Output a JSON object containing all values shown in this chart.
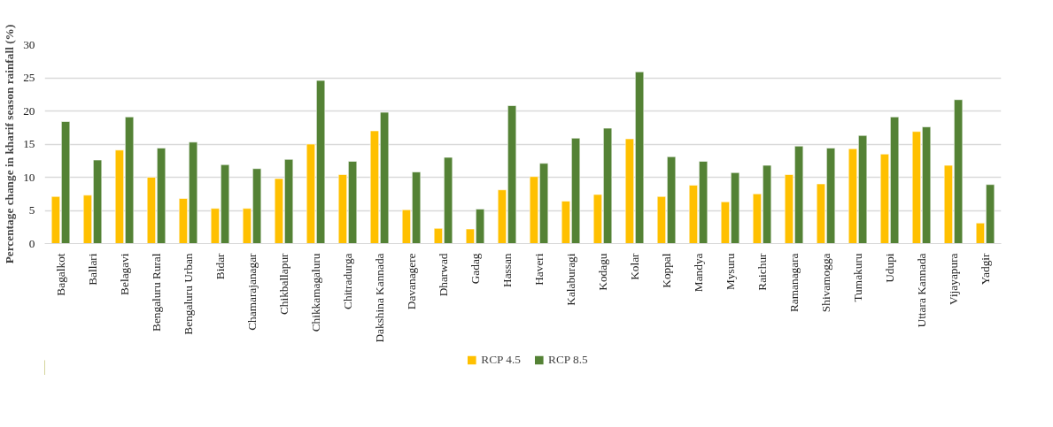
{
  "chart_data": {
    "type": "bar",
    "ylabel": "Percentage change in kharif season rainfall (%)",
    "categories": [
      "Bagalkot",
      "Ballari",
      "Belagavi",
      "Bengaluru Rural",
      "Bengaluru Urban",
      "Bidar",
      "Chamarajanagar",
      "Chikballapur",
      "Chikkamagaluru",
      "Chitradurga",
      "Dakshina Kannada",
      "Davanagere",
      "Dharwad",
      "Gadag",
      "Hassan",
      "Haveri",
      "Kalaburagi",
      "Kodagu",
      "Kolar",
      "Koppal",
      "Mandya",
      "Mysuru",
      "Raichur",
      "Ramanagara",
      "Shivamogga",
      "Tumakuru",
      "Udupi",
      "Uttara Kannada",
      "Vijayapura",
      "Yadgir"
    ],
    "series": [
      {
        "name": "RCP 4.5",
        "color": "#ffc000",
        "values": [
          7.1,
          7.3,
          14.1,
          10.0,
          6.8,
          5.3,
          5.3,
          9.8,
          15.0,
          10.4,
          17.0,
          5.1,
          2.3,
          2.2,
          8.1,
          10.1,
          6.4,
          7.4,
          15.8,
          7.1,
          8.8,
          6.3,
          7.5,
          10.4,
          9.0,
          14.3,
          13.5,
          16.9,
          11.8,
          3.1
        ]
      },
      {
        "name": "RCP 8.5",
        "color": "#548235",
        "values": [
          18.4,
          12.6,
          19.1,
          14.4,
          15.3,
          11.9,
          11.3,
          12.7,
          24.6,
          12.4,
          19.8,
          10.8,
          13.0,
          5.2,
          20.8,
          12.1,
          15.9,
          17.4,
          25.9,
          13.1,
          12.4,
          10.7,
          11.8,
          14.7,
          14.4,
          16.3,
          19.1,
          17.6,
          21.7,
          8.9
        ]
      }
    ],
    "ylim": [
      0,
      30
    ],
    "yticks": [
      0,
      5,
      10,
      15,
      20,
      25,
      30
    ],
    "grid": "y",
    "legend": "bottom"
  }
}
